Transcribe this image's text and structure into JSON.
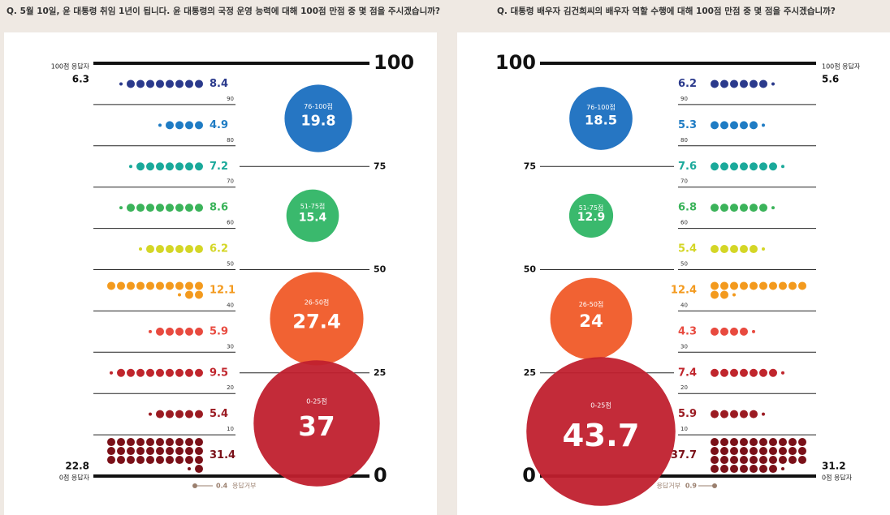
{
  "chart_data": [
    {
      "type": "dotband",
      "title": "Q.  5월 10일, 윤 대통령 취임 1년이 됩니다. 윤 대통령의 국정 운영 능력에 대해 100점 만점 중 몇 점을 주시겠습니까?",
      "values": [
        8.4,
        4.9,
        7.2,
        8.6,
        6.2,
        12.1,
        5.9,
        9.5,
        5.4,
        31.4
      ],
      "colors": [
        "#2b3a8c",
        "#1f7cc4",
        "#1aa99a",
        "#3bb35a",
        "#d4d626",
        "#f39a1e",
        "#e84a3f",
        "#c0262d",
        "#9b1b22",
        "#7a1018"
      ],
      "ylim": [
        0,
        100
      ],
      "yticks": [
        90,
        80,
        70,
        60,
        50,
        40,
        30,
        20,
        10
      ],
      "group_ticks": [
        100,
        75,
        50,
        25,
        0
      ],
      "groups": [
        {
          "label": "76-100점",
          "value": 19.8,
          "color": "#1a6fc0"
        },
        {
          "label": "51-75점",
          "value": 15.4,
          "color": "#2fb565"
        },
        {
          "label": "26-50점",
          "value": 27.4,
          "color": "#f05a28"
        },
        {
          "label": "0-25점",
          "value": 37.0,
          "color": "#c0202e"
        }
      ],
      "top_label": "100점 응답자",
      "top_value": 6.3,
      "bottom_label": "0점 응답자",
      "bottom_value": 22.8,
      "refusal_label": "응답거부",
      "refusal_value": 0.4
    },
    {
      "type": "dotband",
      "title": "Q.  대통령 배우자 김건희씨의 배우자 역할 수행에 대해 100점 만점 중 몇 점을 주시겠습니까?",
      "values": [
        6.2,
        5.3,
        7.6,
        6.8,
        5.4,
        12.4,
        4.3,
        7.4,
        5.9,
        37.7
      ],
      "colors": [
        "#2b3a8c",
        "#1f7cc4",
        "#1aa99a",
        "#3bb35a",
        "#d4d626",
        "#f39a1e",
        "#e84a3f",
        "#c0262d",
        "#9b1b22",
        "#7a1018"
      ],
      "ylim": [
        0,
        100
      ],
      "yticks": [
        90,
        80,
        70,
        60,
        50,
        40,
        30,
        20,
        10
      ],
      "group_ticks": [
        100,
        75,
        50,
        25,
        0
      ],
      "groups": [
        {
          "label": "76-100점",
          "value": 18.5,
          "color": "#1a6fc0"
        },
        {
          "label": "51-75점",
          "value": 12.9,
          "color": "#2fb565"
        },
        {
          "label": "26-50점",
          "value": 24.0,
          "color": "#f05a28"
        },
        {
          "label": "0-25점",
          "value": 43.7,
          "color": "#c0202e"
        }
      ],
      "top_label": "100점 응답자",
      "top_value": 5.6,
      "bottom_label": "0점 응답자",
      "bottom_value": 31.2,
      "refusal_label": "응답거부",
      "refusal_value": 0.9
    }
  ]
}
